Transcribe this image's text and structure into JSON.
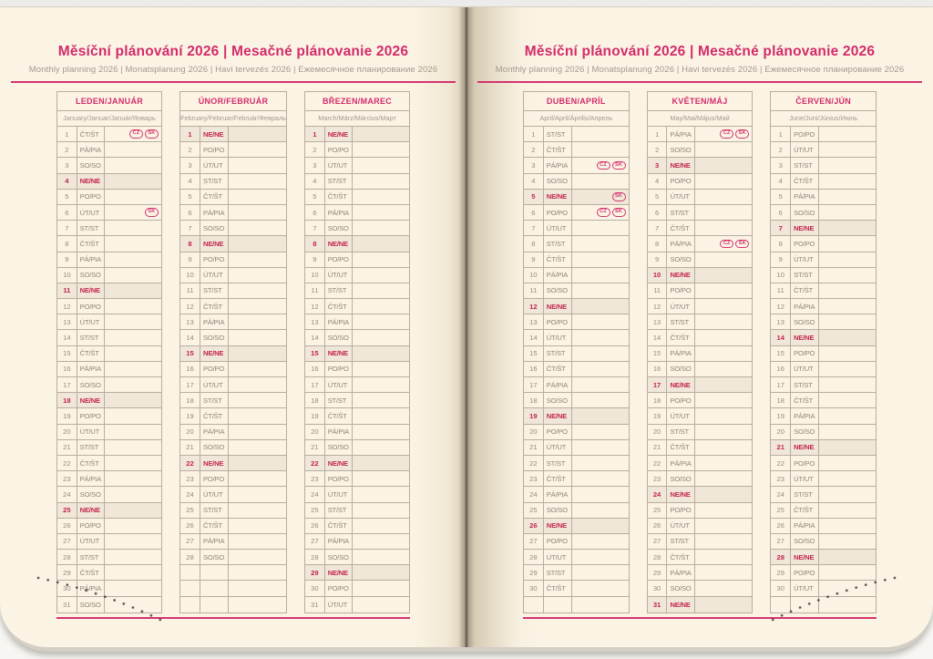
{
  "page": {
    "title": "Měsíční plánování 2026 | Mesačné plánovanie 2026",
    "subtitle": "Monthly planning 2026 | Monatsplanung 2026 | Havi tervezés 2026 | Ежемесячное планирование 2026"
  },
  "colors": {
    "accent_pink": "#d42b6a",
    "holiday_red": "#c3254e",
    "sunday_row_bg": "#f0e7d9",
    "grid_border": "#b8ae9f",
    "paper_cream": "#fbf4e5"
  },
  "badges": {
    "cz": "CZ",
    "sk": "SK"
  },
  "months": [
    {
      "name": "LEDEN/JANUÁR",
      "subtitle": "January/Januar/Január/Январь",
      "pad": 0,
      "days": [
        {
          "n": 1,
          "d": "ČT/ŠT",
          "b": [
            "cz",
            "sk"
          ]
        },
        {
          "n": 2,
          "d": "PÁ/PIA"
        },
        {
          "n": 3,
          "d": "SO/SO"
        },
        {
          "n": 4,
          "d": "NE/NE",
          "hl": true
        },
        {
          "n": 5,
          "d": "PO/PO"
        },
        {
          "n": 6,
          "d": "ÚT/UT",
          "b": [
            "sk"
          ]
        },
        {
          "n": 7,
          "d": "ST/ST"
        },
        {
          "n": 8,
          "d": "ČT/ŠT"
        },
        {
          "n": 9,
          "d": "PÁ/PIA"
        },
        {
          "n": 10,
          "d": "SO/SO"
        },
        {
          "n": 11,
          "d": "NE/NE",
          "hl": true
        },
        {
          "n": 12,
          "d": "PO/PO"
        },
        {
          "n": 13,
          "d": "ÚT/UT"
        },
        {
          "n": 14,
          "d": "ST/ST"
        },
        {
          "n": 15,
          "d": "ČT/ŠT"
        },
        {
          "n": 16,
          "d": "PÁ/PIA"
        },
        {
          "n": 17,
          "d": "SO/SO"
        },
        {
          "n": 18,
          "d": "NE/NE",
          "hl": true
        },
        {
          "n": 19,
          "d": "PO/PO"
        },
        {
          "n": 20,
          "d": "ÚT/UT"
        },
        {
          "n": 21,
          "d": "ST/ST"
        },
        {
          "n": 22,
          "d": "ČT/ŠT"
        },
        {
          "n": 23,
          "d": "PÁ/PIA"
        },
        {
          "n": 24,
          "d": "SO/SO"
        },
        {
          "n": 25,
          "d": "NE/NE",
          "hl": true
        },
        {
          "n": 26,
          "d": "PO/PO"
        },
        {
          "n": 27,
          "d": "ÚT/UT"
        },
        {
          "n": 28,
          "d": "ST/ST"
        },
        {
          "n": 29,
          "d": "ČT/ŠT"
        },
        {
          "n": 30,
          "d": "PÁ/PIA"
        },
        {
          "n": 31,
          "d": "SO/SO"
        }
      ]
    },
    {
      "name": "ÚNOR/FEBRUÁR",
      "subtitle": "February/Februar/Február/Февраль",
      "pad": 3,
      "days": [
        {
          "n": 1,
          "d": "NE/NE",
          "hl": true
        },
        {
          "n": 2,
          "d": "PO/PO"
        },
        {
          "n": 3,
          "d": "ÚT/UT"
        },
        {
          "n": 4,
          "d": "ST/ST"
        },
        {
          "n": 5,
          "d": "ČT/ŠT"
        },
        {
          "n": 6,
          "d": "PÁ/PIA"
        },
        {
          "n": 7,
          "d": "SO/SO"
        },
        {
          "n": 8,
          "d": "NE/NE",
          "hl": true
        },
        {
          "n": 9,
          "d": "PO/PO"
        },
        {
          "n": 10,
          "d": "ÚT/UT"
        },
        {
          "n": 11,
          "d": "ST/ST"
        },
        {
          "n": 12,
          "d": "ČT/ŠT"
        },
        {
          "n": 13,
          "d": "PÁ/PIA"
        },
        {
          "n": 14,
          "d": "SO/SO"
        },
        {
          "n": 15,
          "d": "NE/NE",
          "hl": true
        },
        {
          "n": 16,
          "d": "PO/PO"
        },
        {
          "n": 17,
          "d": "ÚT/UT"
        },
        {
          "n": 18,
          "d": "ST/ST"
        },
        {
          "n": 19,
          "d": "ČT/ŠT"
        },
        {
          "n": 20,
          "d": "PÁ/PIA"
        },
        {
          "n": 21,
          "d": "SO/SO"
        },
        {
          "n": 22,
          "d": "NE/NE",
          "hl": true
        },
        {
          "n": 23,
          "d": "PO/PO"
        },
        {
          "n": 24,
          "d": "ÚT/UT"
        },
        {
          "n": 25,
          "d": "ST/ST"
        },
        {
          "n": 26,
          "d": "ČT/ŠT"
        },
        {
          "n": 27,
          "d": "PÁ/PIA"
        },
        {
          "n": 28,
          "d": "SO/SO"
        }
      ]
    },
    {
      "name": "BŘEZEN/MAREC",
      "subtitle": "March/März/Március/Март",
      "pad": 0,
      "days": [
        {
          "n": 1,
          "d": "NE/NE",
          "hl": true
        },
        {
          "n": 2,
          "d": "PO/PO"
        },
        {
          "n": 3,
          "d": "ÚT/UT"
        },
        {
          "n": 4,
          "d": "ST/ST"
        },
        {
          "n": 5,
          "d": "ČT/ŠT"
        },
        {
          "n": 6,
          "d": "PÁ/PIA"
        },
        {
          "n": 7,
          "d": "SO/SO"
        },
        {
          "n": 8,
          "d": "NE/NE",
          "hl": true
        },
        {
          "n": 9,
          "d": "PO/PO"
        },
        {
          "n": 10,
          "d": "ÚT/UT"
        },
        {
          "n": 11,
          "d": "ST/ST"
        },
        {
          "n": 12,
          "d": "ČT/ŠT"
        },
        {
          "n": 13,
          "d": "PÁ/PIA"
        },
        {
          "n": 14,
          "d": "SO/SO"
        },
        {
          "n": 15,
          "d": "NE/NE",
          "hl": true
        },
        {
          "n": 16,
          "d": "PO/PO"
        },
        {
          "n": 17,
          "d": "ÚT/UT"
        },
        {
          "n": 18,
          "d": "ST/ST"
        },
        {
          "n": 19,
          "d": "ČT/ŠT"
        },
        {
          "n": 20,
          "d": "PÁ/PIA"
        },
        {
          "n": 21,
          "d": "SO/SO"
        },
        {
          "n": 22,
          "d": "NE/NE",
          "hl": true
        },
        {
          "n": 23,
          "d": "PO/PO"
        },
        {
          "n": 24,
          "d": "ÚT/UT"
        },
        {
          "n": 25,
          "d": "ST/ST"
        },
        {
          "n": 26,
          "d": "ČT/ŠT"
        },
        {
          "n": 27,
          "d": "PÁ/PIA"
        },
        {
          "n": 28,
          "d": "SO/SO"
        },
        {
          "n": 29,
          "d": "NE/NE",
          "hl": true
        },
        {
          "n": 30,
          "d": "PO/PO"
        },
        {
          "n": 31,
          "d": "ÚT/UT"
        }
      ]
    },
    {
      "name": "DUBEN/APRÍL",
      "subtitle": "April/April/Április/Апрель",
      "pad": 1,
      "days": [
        {
          "n": 1,
          "d": "ST/ST"
        },
        {
          "n": 2,
          "d": "ČT/ŠT"
        },
        {
          "n": 3,
          "d": "PÁ/PIA",
          "b": [
            "cz",
            "sk"
          ]
        },
        {
          "n": 4,
          "d": "SO/SO"
        },
        {
          "n": 5,
          "d": "NE/NE",
          "hl": true,
          "b": [
            "sk"
          ]
        },
        {
          "n": 6,
          "d": "PO/PO",
          "b": [
            "cz",
            "sk"
          ]
        },
        {
          "n": 7,
          "d": "ÚT/UT"
        },
        {
          "n": 8,
          "d": "ST/ST"
        },
        {
          "n": 9,
          "d": "ČT/ŠT"
        },
        {
          "n": 10,
          "d": "PÁ/PIA"
        },
        {
          "n": 11,
          "d": "SO/SO"
        },
        {
          "n": 12,
          "d": "NE/NE",
          "hl": true
        },
        {
          "n": 13,
          "d": "PO/PO"
        },
        {
          "n": 14,
          "d": "ÚT/UT"
        },
        {
          "n": 15,
          "d": "ST/ST"
        },
        {
          "n": 16,
          "d": "ČT/ŠT"
        },
        {
          "n": 17,
          "d": "PÁ/PIA"
        },
        {
          "n": 18,
          "d": "SO/SO"
        },
        {
          "n": 19,
          "d": "NE/NE",
          "hl": true
        },
        {
          "n": 20,
          "d": "PO/PO"
        },
        {
          "n": 21,
          "d": "ÚT/UT"
        },
        {
          "n": 22,
          "d": "ST/ST"
        },
        {
          "n": 23,
          "d": "ČT/ŠT"
        },
        {
          "n": 24,
          "d": "PÁ/PIA"
        },
        {
          "n": 25,
          "d": "SO/SO"
        },
        {
          "n": 26,
          "d": "NE/NE",
          "hl": true
        },
        {
          "n": 27,
          "d": "PO/PO"
        },
        {
          "n": 28,
          "d": "ÚT/UT"
        },
        {
          "n": 29,
          "d": "ST/ST"
        },
        {
          "n": 30,
          "d": "ČT/ŠT"
        }
      ]
    },
    {
      "name": "KVĚTEN/MÁJ",
      "subtitle": "May/Mai/Május/Май",
      "pad": 0,
      "days": [
        {
          "n": 1,
          "d": "PÁ/PIA",
          "b": [
            "cz",
            "sk"
          ]
        },
        {
          "n": 2,
          "d": "SO/SO"
        },
        {
          "n": 3,
          "d": "NE/NE",
          "hl": true
        },
        {
          "n": 4,
          "d": "PO/PO"
        },
        {
          "n": 5,
          "d": "ÚT/UT"
        },
        {
          "n": 6,
          "d": "ST/ST"
        },
        {
          "n": 7,
          "d": "ČT/ŠT"
        },
        {
          "n": 8,
          "d": "PÁ/PIA",
          "b": [
            "cz",
            "sk"
          ]
        },
        {
          "n": 9,
          "d": "SO/SO"
        },
        {
          "n": 10,
          "d": "NE/NE",
          "hl": true
        },
        {
          "n": 11,
          "d": "PO/PO"
        },
        {
          "n": 12,
          "d": "ÚT/UT"
        },
        {
          "n": 13,
          "d": "ST/ST"
        },
        {
          "n": 14,
          "d": "ČT/ŠT"
        },
        {
          "n": 15,
          "d": "PÁ/PIA"
        },
        {
          "n": 16,
          "d": "SO/SO"
        },
        {
          "n": 17,
          "d": "NE/NE",
          "hl": true
        },
        {
          "n": 18,
          "d": "PO/PO"
        },
        {
          "n": 19,
          "d": "ÚT/UT"
        },
        {
          "n": 20,
          "d": "ST/ST"
        },
        {
          "n": 21,
          "d": "ČT/ŠT"
        },
        {
          "n": 22,
          "d": "PÁ/PIA"
        },
        {
          "n": 23,
          "d": "SO/SO"
        },
        {
          "n": 24,
          "d": "NE/NE",
          "hl": true
        },
        {
          "n": 25,
          "d": "PO/PO"
        },
        {
          "n": 26,
          "d": "ÚT/UT"
        },
        {
          "n": 27,
          "d": "ST/ST"
        },
        {
          "n": 28,
          "d": "ČT/ŠT"
        },
        {
          "n": 29,
          "d": "PÁ/PIA"
        },
        {
          "n": 30,
          "d": "SO/SO"
        },
        {
          "n": 31,
          "d": "NE/NE",
          "hl": true
        }
      ]
    },
    {
      "name": "ČERVEN/JÚN",
      "subtitle": "June/Juni/Június/Июнь",
      "pad": 1,
      "days": [
        {
          "n": 1,
          "d": "PO/PO"
        },
        {
          "n": 2,
          "d": "ÚT/UT"
        },
        {
          "n": 3,
          "d": "ST/ST"
        },
        {
          "n": 4,
          "d": "ČT/ŠT"
        },
        {
          "n": 5,
          "d": "PÁ/PIA"
        },
        {
          "n": 6,
          "d": "SO/SO"
        },
        {
          "n": 7,
          "d": "NE/NE",
          "hl": true
        },
        {
          "n": 8,
          "d": "PO/PO"
        },
        {
          "n": 9,
          "d": "ÚT/UT"
        },
        {
          "n": 10,
          "d": "ST/ST"
        },
        {
          "n": 11,
          "d": "ČT/ŠT"
        },
        {
          "n": 12,
          "d": "PÁ/PIA"
        },
        {
          "n": 13,
          "d": "SO/SO"
        },
        {
          "n": 14,
          "d": "NE/NE",
          "hl": true
        },
        {
          "n": 15,
          "d": "PO/PO"
        },
        {
          "n": 16,
          "d": "ÚT/UT"
        },
        {
          "n": 17,
          "d": "ST/ST"
        },
        {
          "n": 18,
          "d": "ČT/ŠT"
        },
        {
          "n": 19,
          "d": "PÁ/PIA"
        },
        {
          "n": 20,
          "d": "SO/SO"
        },
        {
          "n": 21,
          "d": "NE/NE",
          "hl": true
        },
        {
          "n": 22,
          "d": "PO/PO"
        },
        {
          "n": 23,
          "d": "ÚT/UT"
        },
        {
          "n": 24,
          "d": "ST/ST"
        },
        {
          "n": 25,
          "d": "ČT/ŠT"
        },
        {
          "n": 26,
          "d": "PÁ/PIA"
        },
        {
          "n": 27,
          "d": "SO/SO"
        },
        {
          "n": 28,
          "d": "NE/NE",
          "hl": true
        },
        {
          "n": 29,
          "d": "PO/PO"
        },
        {
          "n": 30,
          "d": "ÚT/UT"
        }
      ]
    }
  ]
}
